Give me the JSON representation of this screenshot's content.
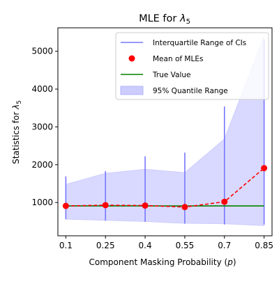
{
  "chart_data": {
    "type": "line",
    "title_main": "MLE for ",
    "title_symbol": "λ",
    "title_subscript": "5",
    "xlabel_main": "Component Masking Probability (",
    "xlabel_symbol": "p",
    "xlabel_close": ")",
    "ylabel_main": "Statistics for ",
    "ylabel_symbol": "λ",
    "ylabel_subscript": "5",
    "x": [
      0.1,
      0.25,
      0.4,
      0.55,
      0.7,
      0.85
    ],
    "x_tick_labels": [
      "0.1",
      "0.25",
      "0.4",
      "0.55",
      "0.7",
      "0.85"
    ],
    "xlim": [
      0.07,
      0.88
    ],
    "ylim": [
      120,
      5620
    ],
    "y_ticks": [
      1000,
      2000,
      3000,
      4000,
      5000
    ],
    "y_tick_labels": [
      "1000",
      "2000",
      "3000",
      "4000",
      "5000"
    ],
    "grid": false,
    "legend_position": "upper right",
    "legend": [
      {
        "label": "Interquartile Range of CIs",
        "style": "vline"
      },
      {
        "label": "Mean of MLEs",
        "style": "marker"
      },
      {
        "label": "True Value",
        "style": "hline"
      },
      {
        "label": "95% Quantile Range",
        "style": "patch"
      }
    ],
    "series": [
      {
        "name": "Interquartile Range of CIs",
        "kind": "vertical-ranges",
        "color": "#7777ff",
        "lower": [
          560,
          520,
          490,
          440,
          420,
          420
        ],
        "upper": [
          1690,
          1830,
          2220,
          2320,
          3540,
          5300
        ]
      },
      {
        "name": "Mean of MLEs",
        "kind": "points-dashed",
        "color": "#ff0000",
        "values": [
          910,
          930,
          920,
          880,
          1020,
          1910
        ]
      },
      {
        "name": "True Value",
        "kind": "line",
        "color": "#008000",
        "values": [
          910,
          910,
          910,
          910,
          910,
          910
        ]
      },
      {
        "name": "95% Quantile Range",
        "kind": "band",
        "color": "#ccccff",
        "lower": [
          560,
          530,
          500,
          450,
          440,
          390
        ],
        "upper": [
          1480,
          1770,
          1880,
          1790,
          2680,
          5400
        ]
      }
    ]
  }
}
